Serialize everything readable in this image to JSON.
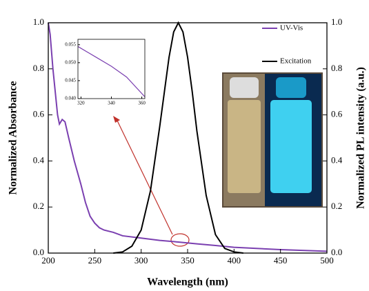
{
  "chart_data": [
    {
      "type": "line",
      "xlabel": "Wavelength (nm)",
      "ylabel": "Normalized Absorbance",
      "y2label": "Normalized PL intensity (a.u.)",
      "xlim": [
        200,
        500
      ],
      "xticks": [
        200,
        250,
        300,
        350,
        400,
        450,
        500
      ],
      "ylim": [
        0,
        1
      ],
      "yticks": [
        {
          "value": 0,
          "label": "0.0"
        },
        0.2,
        0.4,
        0.6,
        0.8,
        {
          "value": 1,
          "label": "1.0"
        }
      ],
      "y2lim": [
        0,
        1
      ],
      "y2ticks": [
        {
          "value": 0,
          "label": "0.0"
        },
        0.2,
        0.4,
        0.6,
        0.8,
        {
          "value": 1,
          "label": "1.0"
        }
      ],
      "legend": "upper right",
      "series": [
        {
          "name": "UV-Vis",
          "color": "#7a3fb0",
          "x": [
            200,
            202,
            205,
            208,
            210,
            212,
            215,
            218,
            222,
            228,
            235,
            240,
            245,
            250,
            255,
            260,
            270,
            280,
            300,
            320,
            340,
            360,
            380,
            400,
            450,
            500
          ],
          "values": [
            1.0,
            0.95,
            0.8,
            0.68,
            0.6,
            0.56,
            0.58,
            0.57,
            0.5,
            0.4,
            0.3,
            0.22,
            0.16,
            0.13,
            0.11,
            0.1,
            0.09,
            0.075,
            0.065,
            0.055,
            0.048,
            0.04,
            0.033,
            0.025,
            0.015,
            0.008
          ]
        },
        {
          "name": "Excitation",
          "color": "#000000",
          "axis": "y2",
          "x": [
            270,
            280,
            290,
            300,
            310,
            320,
            325,
            330,
            335,
            340,
            345,
            350,
            355,
            360,
            370,
            380,
            390,
            400,
            410
          ],
          "values": [
            0,
            0.005,
            0.03,
            0.1,
            0.27,
            0.55,
            0.7,
            0.85,
            0.96,
            1.0,
            0.96,
            0.85,
            0.7,
            0.53,
            0.25,
            0.08,
            0.02,
            0.005,
            0
          ]
        }
      ]
    },
    {
      "type": "line",
      "xlim": [
        318,
        362
      ],
      "xticks": [
        320,
        340,
        360
      ],
      "ylim": [
        0.04,
        0.0565
      ],
      "yticks": [
        {
          "value": 0.04,
          "label": "0.040"
        },
        0.045,
        {
          "value": 0.05,
          "label": "0.050"
        },
        0.055
      ],
      "series": [
        {
          "color": "#7a3fb0",
          "x": [
            318,
            330,
            340,
            350,
            362
          ],
          "values": [
            0.0545,
            0.0515,
            0.049,
            0.046,
            0.0405
          ]
        }
      ]
    }
  ]
}
